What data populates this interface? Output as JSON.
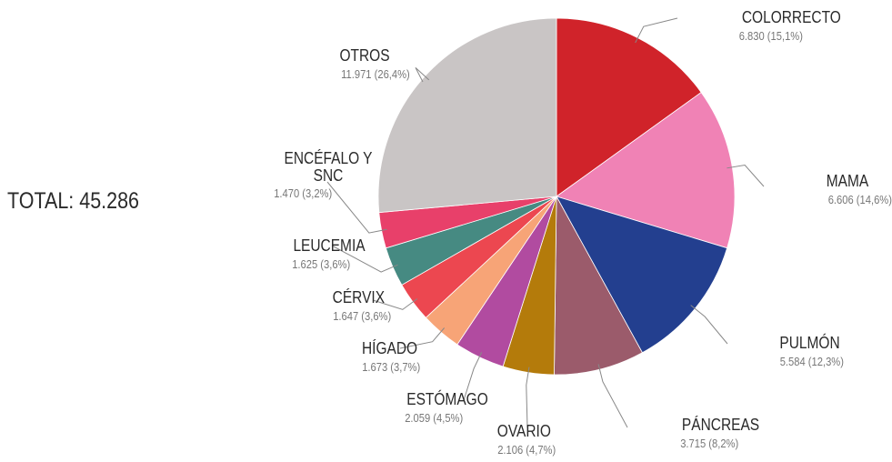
{
  "chart_data": {
    "type": "pie",
    "annotation": "TOTAL: 45.286",
    "categories": [
      "COLORRECTO",
      "MAMA",
      "PULMÓN",
      "PÁNCREAS",
      "OVARIO",
      "ESTÓMAGO",
      "HÍGADO",
      "CÉRVIX",
      "LEUCEMIA",
      "ENCÉFALO Y SNC",
      "OTROS"
    ],
    "values": [
      6830,
      6606,
      5584,
      3715,
      2106,
      2059,
      1673,
      1647,
      1625,
      1470,
      11971
    ],
    "value_labels": [
      "6.830 (15,1%)",
      "6.606 (14,6%)",
      "5.584 (12,3%)",
      "3.715 (8,2%)",
      "2.106 (4,7%)",
      "2.059 (4,5%)",
      "1.673 (3,7%)",
      "1.647 (3,6%)",
      "1.625 (3,6%)",
      "1.470 (3,2%)",
      "11.971 (26,4%)"
    ],
    "colors": [
      "#d0232a",
      "#f082b5",
      "#233f8f",
      "#9b5b6b",
      "#b47b0b",
      "#b14ba0",
      "#f7a477",
      "#ec4750",
      "#468a82",
      "#e8406a",
      "#c9c5c5"
    ]
  }
}
